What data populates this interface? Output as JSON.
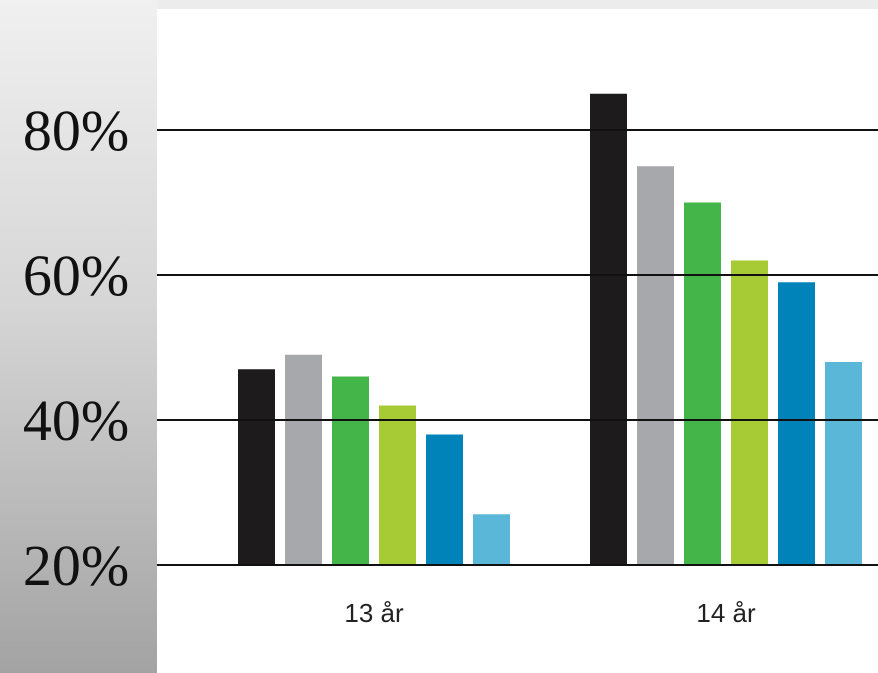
{
  "chart_data": {
    "type": "bar",
    "categories": [
      "13 år",
      "14 år"
    ],
    "series": [
      {
        "color": "#1d1b1c",
        "values": [
          47,
          85
        ]
      },
      {
        "color": "#a7a8ac",
        "values": [
          49,
          75
        ]
      },
      {
        "color": "#44b649",
        "values": [
          46,
          70
        ]
      },
      {
        "color": "#a7cb34",
        "values": [
          42,
          62
        ]
      },
      {
        "color": "#0083b8",
        "values": [
          38,
          59
        ]
      },
      {
        "color": "#5ab7d8",
        "values": [
          27,
          48
        ]
      }
    ],
    "ylim": [
      20,
      90
    ],
    "yticks": [
      {
        "value": 20,
        "label": "20%"
      },
      {
        "value": 40,
        "label": "40%"
      },
      {
        "value": 60,
        "label": "60%"
      },
      {
        "value": 80,
        "label": "80%"
      }
    ],
    "grid": true,
    "title": "",
    "xlabel": "",
    "ylabel": ""
  }
}
